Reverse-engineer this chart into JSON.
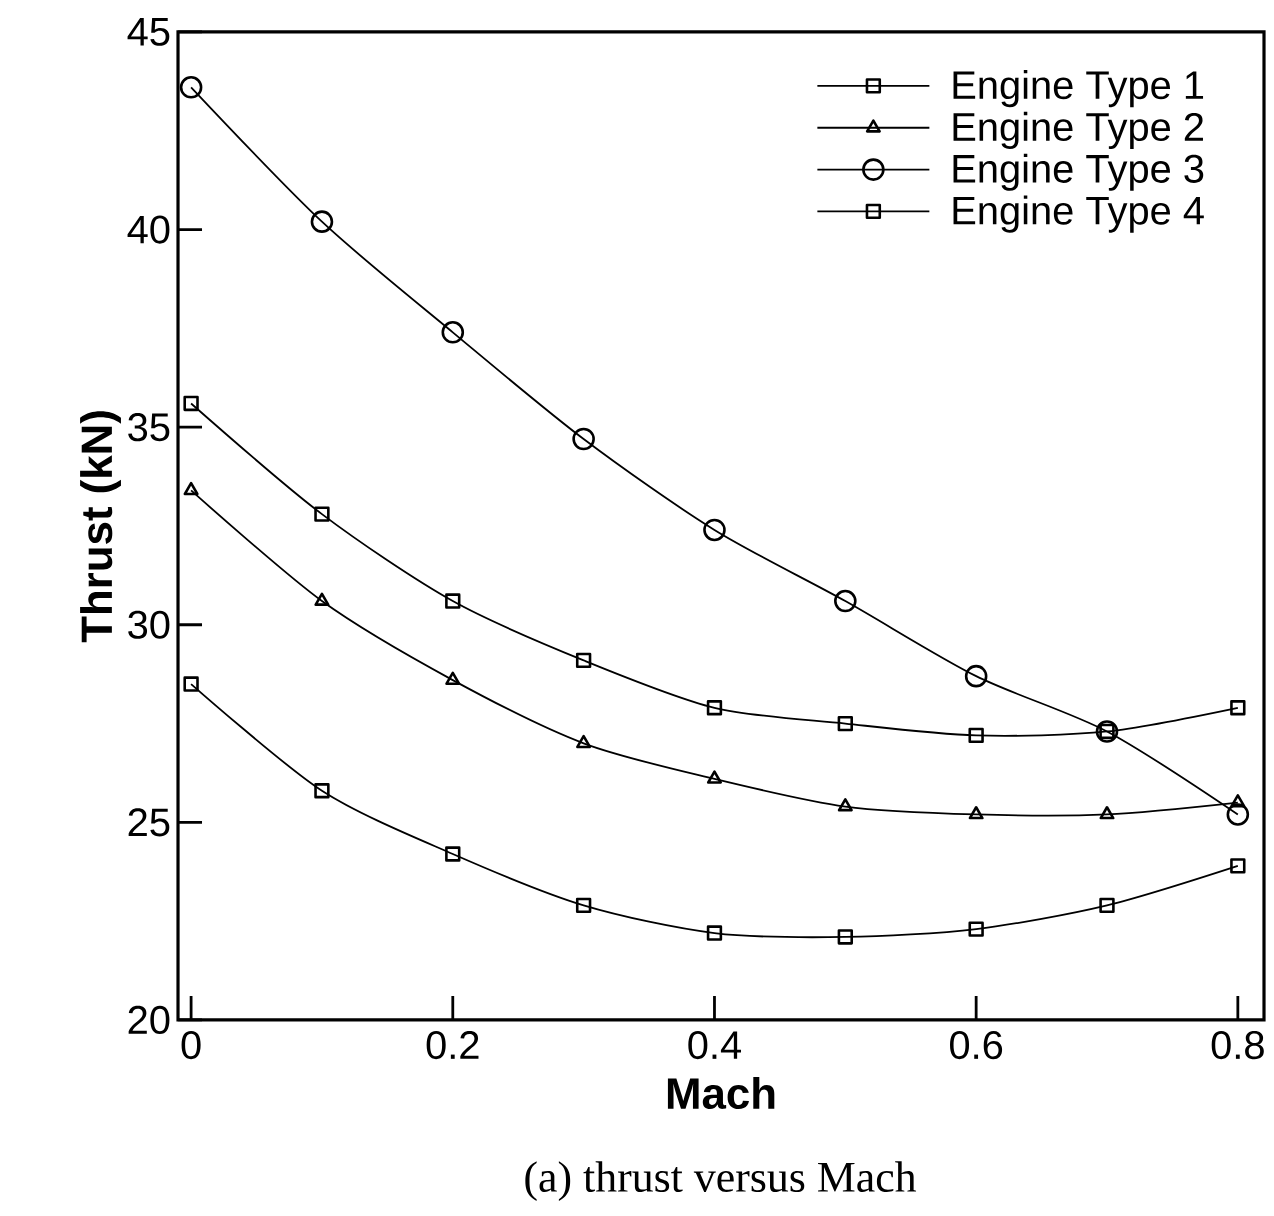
{
  "chart_data": {
    "type": "line",
    "xlabel": "Mach",
    "ylabel": "Thrust (kN)",
    "annotations": [
      "(a) thrust versus Mach"
    ],
    "x": [
      0,
      0.1,
      0.2,
      0.3,
      0.4,
      0.5,
      0.6,
      0.7,
      0.8
    ],
    "xlim": [
      -0.01,
      0.82
    ],
    "ylim": [
      20,
      45
    ],
    "xticks": [
      0,
      0.2,
      0.4,
      0.6,
      0.8
    ],
    "yticks": [
      20,
      25,
      30,
      35,
      40,
      45
    ],
    "legend": "top right",
    "grid": false,
    "line_style": "solid",
    "series": [
      {
        "name": "Engine Type 1",
        "color": "#000000",
        "marker": "square",
        "values": [
          28.5,
          25.8,
          24.2,
          22.9,
          22.2,
          22.1,
          22.3,
          22.9,
          23.9
        ]
      },
      {
        "name": "Engine Type 2",
        "color": "#000000",
        "marker": "triangle",
        "values": [
          33.4,
          30.6,
          28.6,
          27.0,
          26.1,
          25.4,
          25.2,
          25.2,
          25.5
        ]
      },
      {
        "name": "Engine Type 3",
        "color": "#000000",
        "marker": "circle",
        "values": [
          43.6,
          40.2,
          37.4,
          34.7,
          32.4,
          30.6,
          28.7,
          27.3,
          25.2
        ]
      },
      {
        "name": "Engine Type 4",
        "color": "#000000",
        "marker": "square",
        "values": [
          35.6,
          32.8,
          30.6,
          29.1,
          27.9,
          27.5,
          27.2,
          27.3,
          27.9
        ]
      }
    ]
  }
}
